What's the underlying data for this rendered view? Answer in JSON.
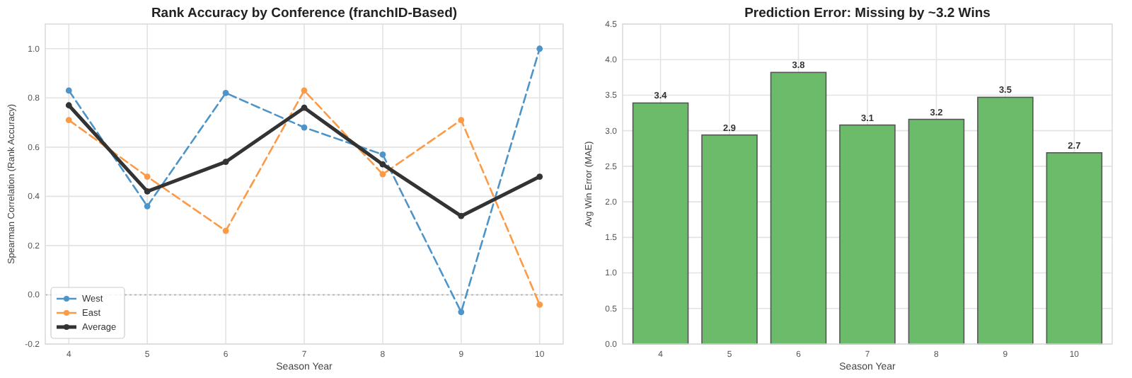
{
  "chart_data": [
    {
      "type": "line",
      "title": "Rank Accuracy by Conference (franchID-Based)",
      "xlabel": "Season Year",
      "ylabel": "Spearman Correlation (Rank Accuracy)",
      "x": [
        4,
        5,
        6,
        7,
        8,
        9,
        10
      ],
      "xlim": [
        3.7,
        10.3
      ],
      "xticks": [
        4,
        5,
        6,
        7,
        8,
        9,
        10
      ],
      "ylim": [
        -0.2,
        1.1
      ],
      "yticks": [
        -0.2,
        {
          "value": 0,
          "label": "0.0"
        },
        0.2,
        0.4,
        0.6,
        0.8,
        {
          "value": 1,
          "label": "1.0"
        }
      ],
      "series": [
        {
          "name": "West",
          "color": "#4d94c8",
          "line_style": "dashed",
          "values": [
            0.83,
            0.36,
            0.82,
            0.68,
            0.57,
            -0.07,
            1.0
          ]
        },
        {
          "name": "East",
          "color": "#fc9a45",
          "line_style": "dashed",
          "values": [
            0.71,
            0.48,
            0.26,
            0.83,
            0.49,
            0.71,
            -0.04
          ]
        },
        {
          "name": "Average",
          "color": "#333333",
          "line_style": "solid",
          "values": [
            0.77,
            0.42,
            0.54,
            0.76,
            0.53,
            0.32,
            0.48
          ]
        }
      ],
      "ref_lines": [
        {
          "axis": "y",
          "value": 0,
          "color": "#aaaaaa",
          "line_style": "dotted"
        }
      ],
      "marker": "circle",
      "grid": true,
      "legend": "bottom left"
    },
    {
      "type": "bar",
      "title": "Prediction Error: Missing by ~3.2 Wins",
      "xlabel": "Season Year",
      "ylabel": "Avg Win Error (MAE)",
      "categories": [
        "4",
        "5",
        "6",
        "7",
        "8",
        "9",
        "10"
      ],
      "values": [
        3.39,
        2.94,
        3.82,
        3.08,
        3.16,
        3.47,
        2.69
      ],
      "value_labels": [
        "3.4",
        "2.9",
        "3.8",
        "3.1",
        "3.2",
        "3.5",
        "2.7"
      ],
      "color": "#6bbb6b",
      "ylim": [
        0,
        4.5
      ],
      "yticks": [
        {
          "value": 0,
          "label": "0.0"
        },
        0.5,
        {
          "value": 1,
          "label": "1.0"
        },
        1.5,
        {
          "value": 2,
          "label": "2.0"
        },
        2.5,
        {
          "value": 3,
          "label": "3.0"
        },
        3.5,
        {
          "value": 4,
          "label": "4.0"
        },
        4.5
      ],
      "grid": true
    }
  ]
}
